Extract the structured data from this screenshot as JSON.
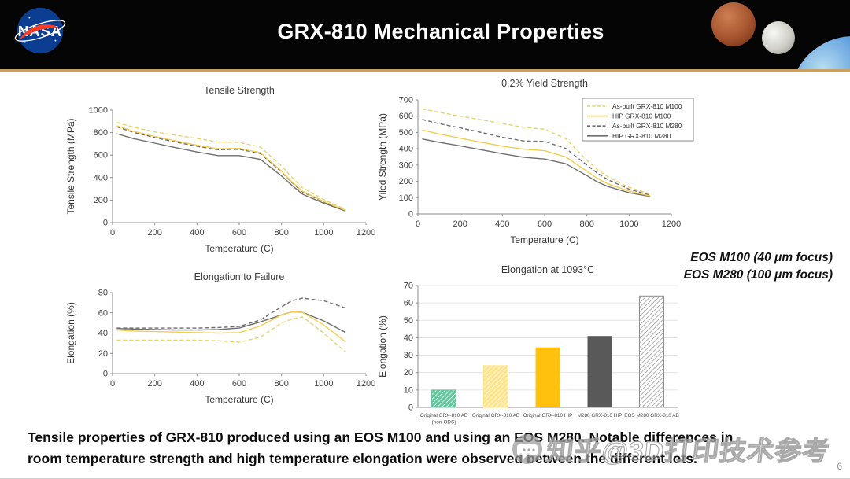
{
  "header": {
    "title": "GRX-810 Mechanical Properties",
    "logo_text": "NASA"
  },
  "annotations": {
    "eos_m100": "EOS M100 (40 μm focus)",
    "eos_m280": "EOS M280 (100 μm focus)"
  },
  "footer": {
    "line1": "Tensile properties of GRX-810 produced using an EOS M100 and using an EOS M280. Notable differences in",
    "line2": "room temperature strength and high temperature elongation were observed between the different lots.",
    "page_number": "6"
  },
  "watermark": {
    "text": "知乎@3D打印技术参考",
    "icon": "chat-bubble-icon"
  },
  "colors": {
    "yellow_dash": "#E8D26E",
    "yellow_solid": "#F3CE4E",
    "gray_line": "#6F6F6F",
    "header_accent": "#C9A063",
    "axis": "#8c8c8c",
    "gridline": "#dcdcdc"
  },
  "chart_data": [
    {
      "type": "line",
      "title": "Tensile Strength",
      "xlabel": "Temperature (C)",
      "ylabel": "Tensile Strength (MPa)",
      "xlim": [
        0,
        1200
      ],
      "xticks": [
        0,
        200,
        400,
        600,
        800,
        1000,
        1200
      ],
      "ylim": [
        0,
        1000
      ],
      "yticks": [
        0,
        200,
        400,
        600,
        800,
        1000
      ],
      "grid": false,
      "legend_position": "none",
      "x": [
        20,
        100,
        200,
        300,
        400,
        500,
        600,
        700,
        800,
        850,
        900,
        1000,
        1100
      ],
      "series": [
        {
          "name": "As-built GRX-810 M100",
          "color": "#E8D26E",
          "dash": true,
          "values": [
            890,
            848,
            806,
            776,
            748,
            716,
            713,
            672,
            505,
            400,
            310,
            205,
            120
          ]
        },
        {
          "name": "HIP GRX-810 M100",
          "color": "#F3CE4E",
          "dash": false,
          "values": [
            860,
            812,
            766,
            726,
            688,
            656,
            660,
            622,
            458,
            360,
            278,
            188,
            112
          ]
        },
        {
          "name": "As-built GRX-810 M280",
          "color": "#6F6F6F",
          "dash": true,
          "values": [
            852,
            802,
            756,
            716,
            678,
            648,
            652,
            615,
            450,
            355,
            272,
            182,
            110
          ]
        },
        {
          "name": "HIP GRX-810 M280",
          "color": "#6F6F6F",
          "dash": false,
          "values": [
            790,
            746,
            706,
            666,
            628,
            596,
            596,
            562,
            415,
            330,
            252,
            172,
            105
          ]
        }
      ]
    },
    {
      "type": "line",
      "title": "0.2% Yield Strength",
      "xlabel": "Temperature (C)",
      "ylabel": "Yiled Strength (MPa)",
      "xlim": [
        0,
        1200
      ],
      "xticks": [
        0,
        200,
        400,
        600,
        800,
        1000,
        1200
      ],
      "ylim": [
        0,
        700
      ],
      "yticks": [
        0,
        100,
        200,
        300,
        400,
        500,
        600,
        700
      ],
      "grid": false,
      "legend_position": "top-right",
      "x": [
        20,
        100,
        200,
        300,
        400,
        500,
        600,
        700,
        800,
        850,
        900,
        1000,
        1100
      ],
      "series": [
        {
          "name": "As-built GRX-810 M100",
          "color": "#E8D26E",
          "dash": true,
          "values": [
            645,
            624,
            600,
            578,
            554,
            532,
            520,
            462,
            330,
            272,
            228,
            163,
            122
          ]
        },
        {
          "name": "HIP GRX-810 M100",
          "color": "#F3CE4E",
          "dash": false,
          "values": [
            515,
            491,
            465,
            440,
            416,
            398,
            388,
            350,
            262,
            218,
            185,
            140,
            110
          ]
        },
        {
          "name": "As-built GRX-810 M280",
          "color": "#6F6F6F",
          "dash": true,
          "values": [
            580,
            554,
            528,
            500,
            470,
            448,
            445,
            402,
            300,
            250,
            210,
            152,
            115
          ]
        },
        {
          "name": "HIP GRX-810 M280",
          "color": "#6F6F6F",
          "dash": false,
          "values": [
            460,
            440,
            418,
            394,
            370,
            348,
            337,
            308,
            235,
            196,
            168,
            130,
            107
          ]
        }
      ]
    },
    {
      "type": "line",
      "title": "Elongation to Failure",
      "xlabel": "Temperature (C)",
      "ylabel": "Elongation (%)",
      "xlim": [
        0,
        1200
      ],
      "xticks": [
        0,
        200,
        400,
        600,
        800,
        1000,
        1200
      ],
      "ylim": [
        0,
        80
      ],
      "yticks": [
        0,
        20,
        40,
        60,
        80
      ],
      "grid": false,
      "legend_position": "none",
      "x": [
        20,
        100,
        200,
        300,
        400,
        500,
        600,
        700,
        800,
        850,
        900,
        1000,
        1100
      ],
      "series": [
        {
          "name": "As-built GRX-810 M100",
          "color": "#E8D26E",
          "dash": true,
          "values": [
            33,
            33,
            33,
            33,
            33,
            32.5,
            31,
            36,
            50,
            54,
            56,
            40,
            22
          ]
        },
        {
          "name": "HIP GRX-810 M100",
          "color": "#F3CE4E",
          "dash": false,
          "values": [
            43,
            42,
            41.5,
            41,
            40.5,
            40,
            40.5,
            47,
            58,
            61,
            60.5,
            48,
            32
          ]
        },
        {
          "name": "As-built GRX-810 M280",
          "color": "#6F6F6F",
          "dash": true,
          "values": [
            45,
            45,
            45,
            45,
            45,
            45.5,
            46.5,
            53,
            66,
            72,
            74.5,
            72,
            65
          ]
        },
        {
          "name": "HIP GRX-810 M280",
          "color": "#6F6F6F",
          "dash": false,
          "values": [
            44.5,
            44,
            43.5,
            43,
            43,
            43.5,
            45,
            51,
            58,
            61,
            60.5,
            52,
            41
          ]
        }
      ]
    },
    {
      "type": "bar",
      "title": "Elongation at 1093°C",
      "xlabel": "",
      "ylabel": "Elongation (%)",
      "ylim": [
        0,
        70
      ],
      "yticks": [
        0,
        10,
        20,
        30,
        40,
        50,
        60,
        70
      ],
      "grid": true,
      "legend_position": "none",
      "categories": [
        "Original GRX-810 AB\n(non-ODS)",
        "Original GRX-810 AB",
        "Original GRX-810 HIP",
        "M280 GRX-810 HIP",
        "EOS M280 GRX-810 AB"
      ],
      "values": [
        10,
        24,
        34.5,
        41,
        64
      ],
      "bar_styles": [
        {
          "fill": "#63C69E",
          "hatch": true,
          "hatch_color": "#ffffff"
        },
        {
          "fill": "#FFE48A",
          "hatch": true,
          "hatch_color": "#ffffff"
        },
        {
          "fill": "#FFC10E",
          "hatch": false,
          "hatch_color": ""
        },
        {
          "fill": "#595959",
          "hatch": false,
          "hatch_color": ""
        },
        {
          "fill": "#ffffff",
          "hatch": true,
          "hatch_color": "#8f8f8f"
        }
      ]
    }
  ]
}
